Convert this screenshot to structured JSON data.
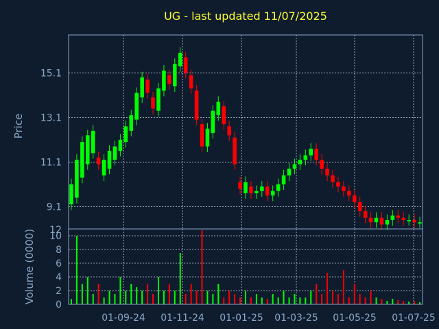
{
  "chart_data": {
    "type": "candlestick",
    "title": "UG - last updated 11/07/2025",
    "colors": {
      "background": "#0f1c2e",
      "axis": "#8aa8c8",
      "grid": "#c8d2dc",
      "title": "#ffff33",
      "label": "#8aa8c8",
      "up": "#00ff00",
      "down": "#ff0000"
    },
    "grid": true,
    "price_panel": {
      "ylabel": "Price",
      "ylim": [
        8.1,
        16.8
      ],
      "yticks": [
        9.1,
        11.1,
        13.1,
        15.1
      ],
      "ytick_labels": [
        "9.1",
        "11.1",
        "13.1",
        "15.1"
      ],
      "extra_tick_label": "12"
    },
    "volume_panel": {
      "ylabel": "Volume (0000)",
      "ylim": [
        0,
        11
      ],
      "yticks": [
        0,
        2,
        4,
        6,
        8,
        10
      ],
      "ytick_labels": [
        "0",
        "2",
        "4",
        "6",
        "8",
        "10"
      ]
    },
    "x_axis": {
      "categories": [
        "01-09-24",
        "01-11-24",
        "01-01-25",
        "01-03-25",
        "01-05-25",
        "01-07-25"
      ]
    },
    "price_series": [
      [
        9.2,
        10.1
      ],
      [
        9.5,
        11.2
      ],
      [
        10.4,
        12.0
      ],
      [
        11.0,
        12.3
      ],
      [
        11.5,
        12.5
      ],
      [
        11.3,
        11.0
      ],
      [
        10.5,
        11.2
      ],
      [
        10.8,
        11.6
      ],
      [
        11.2,
        11.8
      ],
      [
        11.6,
        12.1
      ],
      [
        12.0,
        12.7
      ],
      [
        12.5,
        13.2
      ],
      [
        13.0,
        14.2
      ],
      [
        14.0,
        14.9
      ],
      [
        14.8,
        14.2
      ],
      [
        14.0,
        13.5
      ],
      [
        13.4,
        14.4
      ],
      [
        14.3,
        15.2
      ],
      [
        15.0,
        14.6
      ],
      [
        14.5,
        15.5
      ],
      [
        15.4,
        16.0
      ],
      [
        15.8,
        15.1
      ],
      [
        15.0,
        14.4
      ],
      [
        14.3,
        13.0
      ],
      [
        12.8,
        11.8
      ],
      [
        11.8,
        12.6
      ],
      [
        12.4,
        13.4
      ],
      [
        13.2,
        13.8
      ],
      [
        13.6,
        12.8
      ],
      [
        12.7,
        12.3
      ],
      [
        12.2,
        11.0
      ],
      [
        10.2,
        9.9
      ],
      [
        9.7,
        10.2
      ],
      [
        10.0,
        9.7
      ],
      [
        9.7,
        9.8
      ],
      [
        9.8,
        10.0
      ],
      [
        10.0,
        9.6
      ],
      [
        9.6,
        9.8
      ],
      [
        9.8,
        10.1
      ],
      [
        10.1,
        10.5
      ],
      [
        10.5,
        10.8
      ],
      [
        10.8,
        11.0
      ],
      [
        11.0,
        11.2
      ],
      [
        11.2,
        11.4
      ],
      [
        11.4,
        11.7
      ],
      [
        11.7,
        11.2
      ],
      [
        11.2,
        10.8
      ],
      [
        10.8,
        10.5
      ],
      [
        10.5,
        10.2
      ],
      [
        10.2,
        10.0
      ],
      [
        10.0,
        9.8
      ],
      [
        9.8,
        9.6
      ],
      [
        9.6,
        9.3
      ],
      [
        9.3,
        8.9
      ],
      [
        8.9,
        8.6
      ],
      [
        8.6,
        8.4
      ],
      [
        8.4,
        8.6
      ],
      [
        8.6,
        8.3
      ],
      [
        8.3,
        8.5
      ],
      [
        8.5,
        8.7
      ],
      [
        8.7,
        8.6
      ],
      [
        8.6,
        8.5
      ],
      [
        8.5,
        8.5
      ],
      [
        8.5,
        8.4
      ],
      [
        8.4,
        8.4
      ]
    ],
    "volume_series": [
      0.8,
      10,
      3,
      4,
      1.5,
      3,
      1,
      2,
      1.5,
      4,
      2,
      3,
      2.5,
      2,
      3,
      1.5,
      4,
      2,
      3,
      2,
      7.5,
      1.5,
      3,
      2,
      10.8,
      2,
      1.5,
      3,
      1,
      2,
      1.5,
      1,
      2,
      1,
      1.5,
      1,
      0.8,
      1.5,
      1,
      2,
      1,
      1.5,
      1,
      1,
      2,
      3,
      1.5,
      4.6,
      2,
      1.5,
      5,
      1,
      3,
      1.5,
      1,
      2,
      1,
      0.8,
      0.5,
      0.8,
      0.6,
      0.5,
      0.4,
      0.5,
      0.3
    ]
  }
}
